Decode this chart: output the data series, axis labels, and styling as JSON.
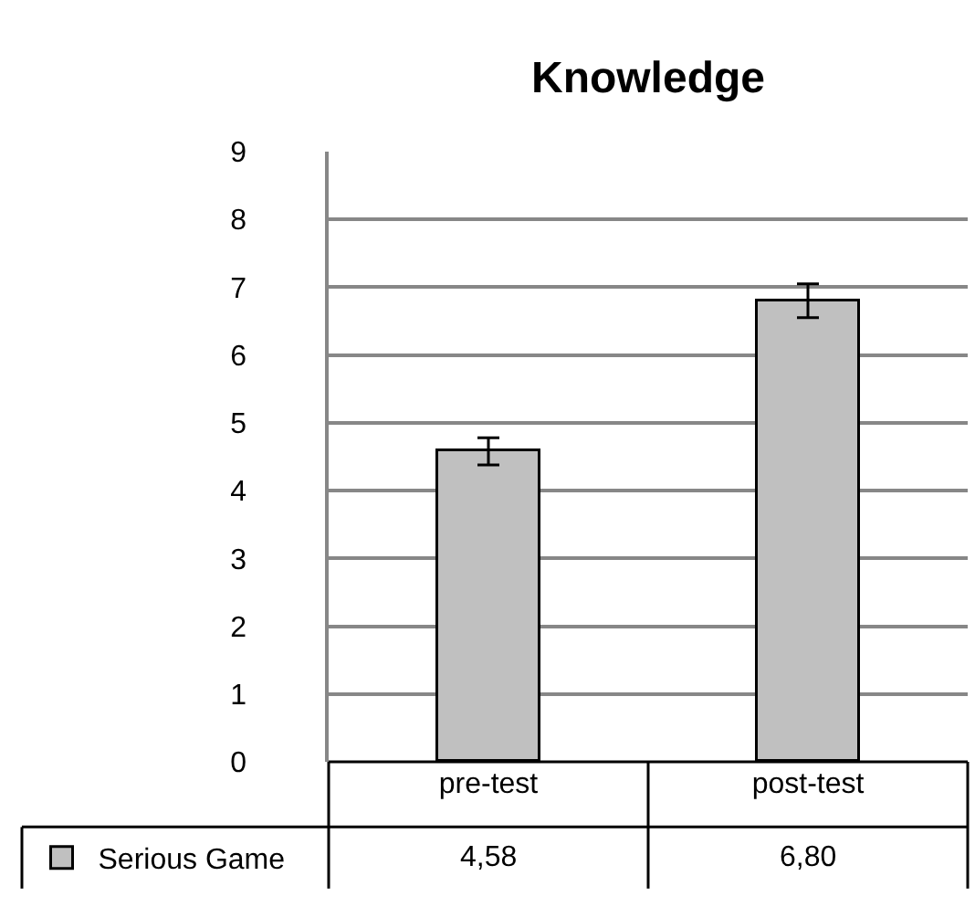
{
  "chart_data": {
    "type": "bar",
    "title": "Knowledge",
    "categories": [
      "pre-test",
      "post-test"
    ],
    "series": [
      {
        "name": "Serious Game",
        "color": "#c0c0c0",
        "values": [
          4.58,
          6.8
        ],
        "errors": [
          0.2,
          0.25
        ],
        "value_labels": [
          "4,58",
          "6,80"
        ]
      }
    ],
    "ylim": [
      0,
      9
    ],
    "yticks": [
      0,
      1,
      2,
      3,
      4,
      5,
      6,
      7,
      8,
      9
    ],
    "grid": "y",
    "legend": "bottom left"
  }
}
